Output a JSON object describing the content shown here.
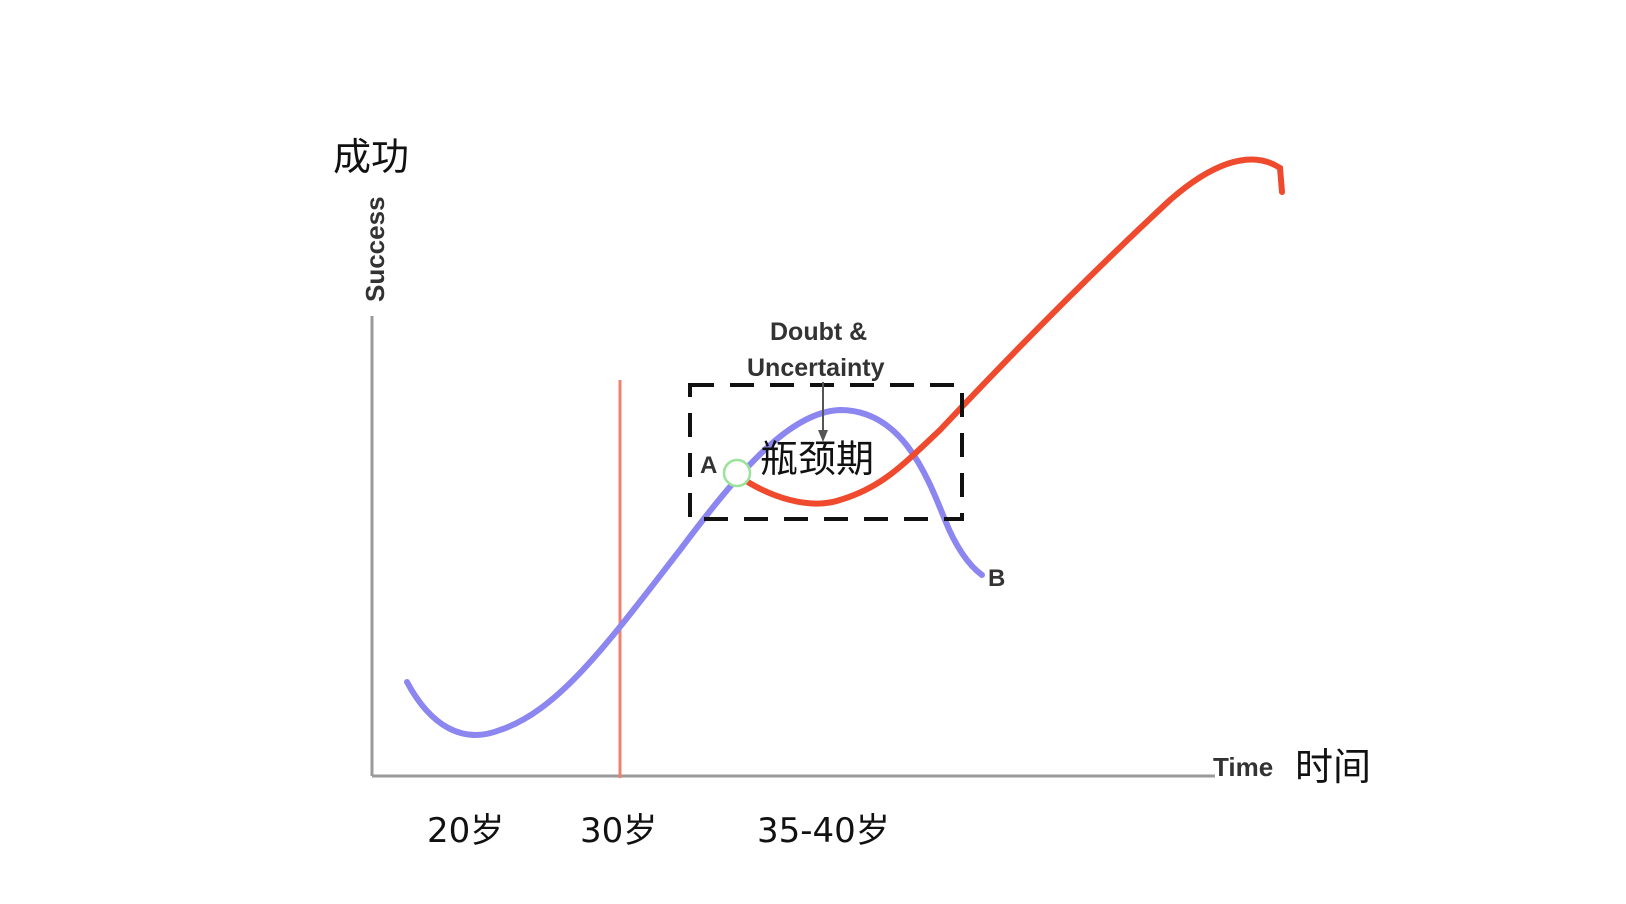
{
  "axis": {
    "y_label_zh": "成功",
    "y_label_en": "Success",
    "x_label_en": "Time",
    "x_label_zh": "时间"
  },
  "ages": {
    "age_20": "20岁",
    "age_30": "30岁",
    "age_35_40": "35-40岁"
  },
  "annotation": {
    "line1": "Doubt &",
    "line2": "Uncertainty"
  },
  "box_label": "瓶颈期",
  "points": {
    "a": "A",
    "b": "B"
  },
  "colors": {
    "axis": "#9a9a9a",
    "blue_curve": "#8c86f0",
    "red_curve": "#ef4a2e",
    "marker_line": "#f08070",
    "box": "#111111",
    "point_a_marker": "#9be39b"
  }
}
